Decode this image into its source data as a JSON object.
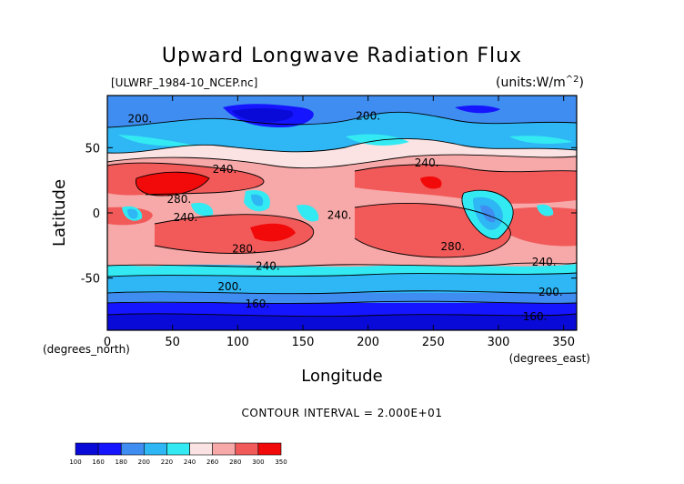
{
  "chart_data": {
    "type": "heatmap",
    "title": "Upward Longwave Radiation Flux",
    "file_label": "[ULWRF_1984-10_NCEP.nc]",
    "units_label": "(units:W/m^2)",
    "xlabel": "Longitude",
    "ylabel": "Latitude",
    "x_unit_label": "(degrees_east)",
    "y_unit_label": "(degrees_north)",
    "xlim": [
      0,
      360
    ],
    "ylim": [
      -90,
      90
    ],
    "x_ticks": [
      0,
      50,
      100,
      150,
      200,
      250,
      300,
      350
    ],
    "y_ticks": [
      -50,
      0,
      50
    ],
    "contour_interval_text": "CONTOUR INTERVAL = 2.000E+01",
    "colorbar": {
      "levels": [
        100,
        160,
        180,
        200,
        220,
        240,
        260,
        280,
        300,
        350
      ],
      "colors": [
        "#0a0ad8",
        "#1515ff",
        "#3f8df0",
        "#2eb6f5",
        "#33eaf2",
        "#fbe3e3",
        "#f7a8a8",
        "#f25a5a",
        "#f20a0a"
      ]
    },
    "contour_labels": [
      {
        "text": "200.",
        "lon": 25,
        "lat": 72
      },
      {
        "text": "200.",
        "lon": 200,
        "lat": 74
      },
      {
        "text": "240.",
        "lon": 90,
        "lat": 33
      },
      {
        "text": "240.",
        "lon": 245,
        "lat": 38
      },
      {
        "text": "280.",
        "lon": 55,
        "lat": 10
      },
      {
        "text": "240.",
        "lon": 60,
        "lat": -4
      },
      {
        "text": "240.",
        "lon": 178,
        "lat": -2
      },
      {
        "text": "280.",
        "lon": 105,
        "lat": -28
      },
      {
        "text": "280.",
        "lon": 265,
        "lat": -26
      },
      {
        "text": "240.",
        "lon": 123,
        "lat": -41
      },
      {
        "text": "240.",
        "lon": 335,
        "lat": -38
      },
      {
        "text": "200.",
        "lon": 94,
        "lat": -57
      },
      {
        "text": "200.",
        "lon": 340,
        "lat": -61
      },
      {
        "text": "160.",
        "lon": 115,
        "lat": -70
      },
      {
        "text": "160.",
        "lon": 328,
        "lat": -80
      }
    ]
  }
}
